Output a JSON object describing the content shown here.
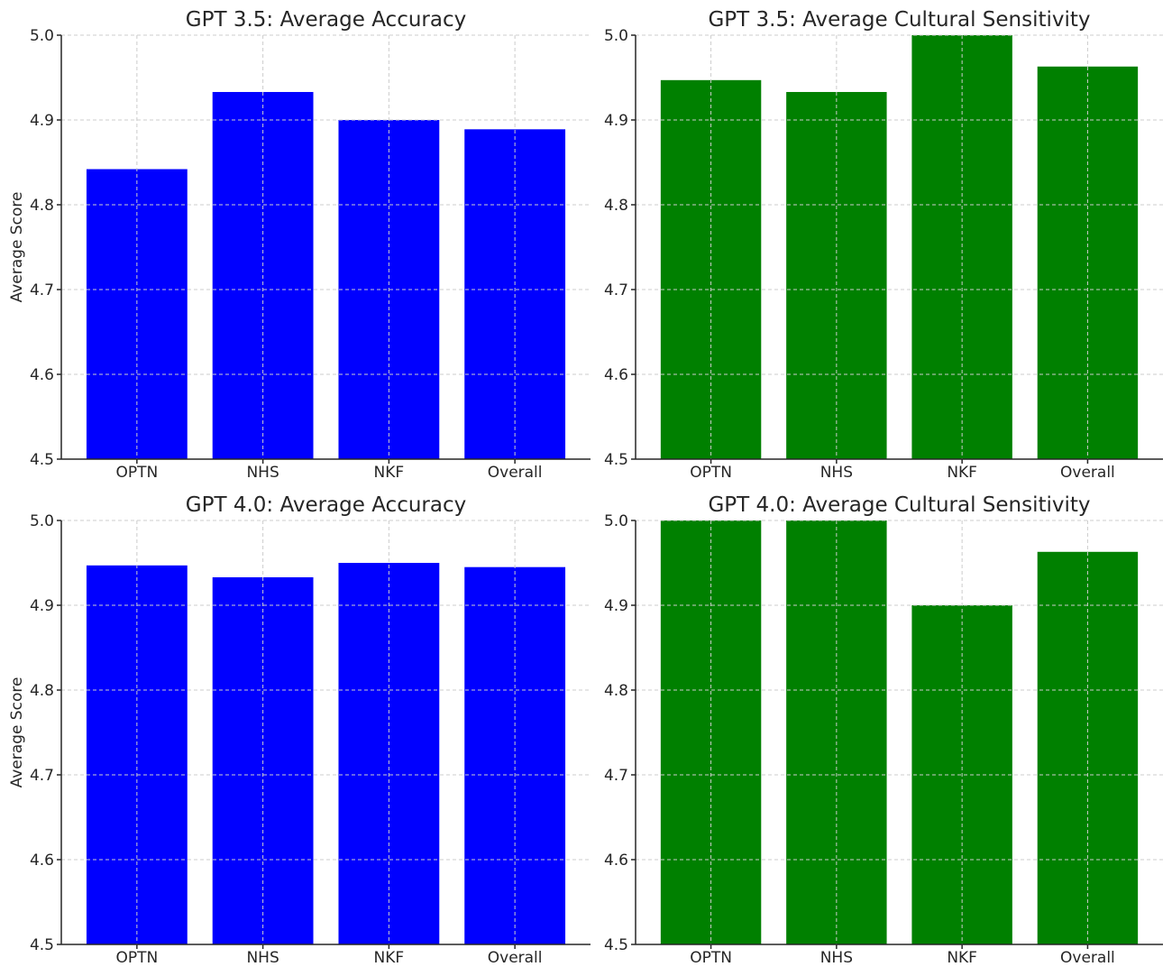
{
  "chart_data": [
    {
      "type": "bar",
      "title": "GPT 3.5: Average Accuracy",
      "xlabel": "",
      "ylabel": "Average Score",
      "categories": [
        "OPTN",
        "NHS",
        "NKF",
        "Overall"
      ],
      "values": [
        4.842,
        4.933,
        4.9,
        4.889
      ],
      "ylim": [
        4.5,
        5.0
      ],
      "yticks": [
        "4.5",
        "4.6",
        "4.7",
        "4.8",
        "4.9",
        "5.0"
      ],
      "grid": true,
      "color": "#0000ff"
    },
    {
      "type": "bar",
      "title": "GPT 3.5: Average Cultural Sensitivity",
      "xlabel": "",
      "ylabel": "",
      "categories": [
        "OPTN",
        "NHS",
        "NKF",
        "Overall"
      ],
      "values": [
        4.947,
        4.933,
        5.0,
        4.963
      ],
      "ylim": [
        4.5,
        5.0
      ],
      "yticks": [
        "4.5",
        "4.6",
        "4.7",
        "4.8",
        "4.9",
        "5.0"
      ],
      "grid": true,
      "color": "#008000"
    },
    {
      "type": "bar",
      "title": "GPT 4.0: Average Accuracy",
      "xlabel": "",
      "ylabel": "Average Score",
      "categories": [
        "OPTN",
        "NHS",
        "NKF",
        "Overall"
      ],
      "values": [
        4.947,
        4.933,
        4.95,
        4.945
      ],
      "ylim": [
        4.5,
        5.0
      ],
      "yticks": [
        "4.5",
        "4.6",
        "4.7",
        "4.8",
        "4.9",
        "5.0"
      ],
      "grid": true,
      "color": "#0000ff"
    },
    {
      "type": "bar",
      "title": "GPT 4.0: Average Cultural Sensitivity",
      "xlabel": "",
      "ylabel": "",
      "categories": [
        "OPTN",
        "NHS",
        "NKF",
        "Overall"
      ],
      "values": [
        5.0,
        5.0,
        4.9,
        4.963
      ],
      "ylim": [
        4.5,
        5.0
      ],
      "yticks": [
        "4.5",
        "4.6",
        "4.7",
        "4.8",
        "4.9",
        "5.0"
      ],
      "grid": true,
      "color": "#008000"
    }
  ]
}
